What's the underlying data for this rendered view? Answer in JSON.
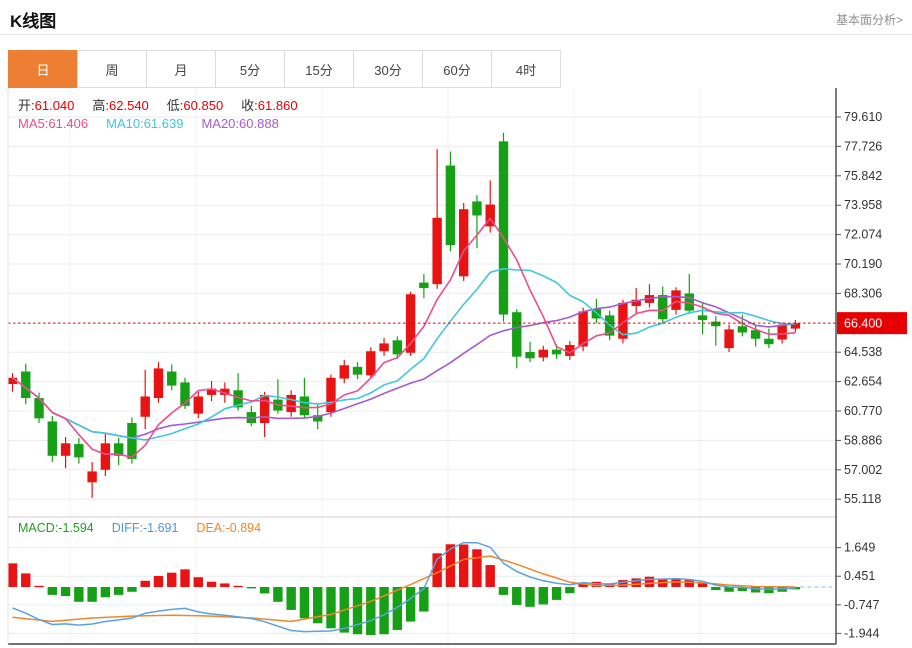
{
  "header": {
    "title": "K线图",
    "link": "基本面分析>"
  },
  "tabs": {
    "items": [
      "日",
      "周",
      "月",
      "5分",
      "15分",
      "30分",
      "60分",
      "4时"
    ],
    "active_index": 0,
    "active_color": "#ee7e33"
  },
  "ohlc_legend": [
    {
      "label": "开:",
      "value": "61.040"
    },
    {
      "label": "高:",
      "value": "62.540"
    },
    {
      "label": "低:",
      "value": "60.850"
    },
    {
      "label": "收:",
      "value": "61.860"
    }
  ],
  "ohlc_value_color": "#e60000",
  "ma_legend": [
    {
      "label": "MA5:",
      "value": "61.406",
      "color": "#ec4d8c"
    },
    {
      "label": "MA10:",
      "value": "61.639",
      "color": "#3fc8d8"
    },
    {
      "label": "MA20:",
      "value": "60.888",
      "color": "#a55bd0"
    }
  ],
  "macd_legend": [
    {
      "label": "MACD:",
      "value": "-1.594",
      "color": "#1f9f1f"
    },
    {
      "label": "DIFF:",
      "value": "-1.691",
      "color": "#4a99e0"
    },
    {
      "label": "DEA:",
      "value": "-0.894",
      "color": "#f0862b"
    }
  ],
  "price_axis": {
    "ticks": [
      "79.610",
      "77.726",
      "75.842",
      "73.958",
      "72.074",
      "70.190",
      "68.306",
      "64.538",
      "62.654",
      "60.770",
      "58.886",
      "57.002",
      "55.118"
    ],
    "last_price": "66.400",
    "last_price_color": "#e60000"
  },
  "macd_axis": {
    "ticks": [
      "1.649",
      "0.451",
      "-0.747",
      "-1.944"
    ]
  },
  "chart_data": {
    "type": "candlestick+macd",
    "up_color": "#e81414",
    "down_color": "#15a015",
    "ma_colors": {
      "ma5": "#ec4d8c",
      "ma10": "#3fc8d8",
      "ma20": "#a55bd0"
    },
    "diff_color": "#5ba3e0",
    "dea_color": "#f0862b",
    "price_line": 66.4,
    "price_range": [
      55.118,
      79.61
    ],
    "macd_tick_values": [
      1.649,
      0.451,
      -0.747,
      -1.944
    ],
    "candles_ohlc": [
      [
        62.5,
        63.2,
        62.0,
        62.9
      ],
      [
        63.3,
        63.8,
        61.2,
        61.6
      ],
      [
        61.6,
        61.95,
        60.0,
        60.3
      ],
      [
        60.1,
        60.45,
        57.5,
        57.9
      ],
      [
        57.9,
        59.1,
        57.1,
        58.7
      ],
      [
        58.65,
        59.05,
        57.4,
        57.8
      ],
      [
        56.2,
        57.5,
        55.2,
        56.9
      ],
      [
        57.0,
        59.3,
        56.6,
        58.7
      ],
      [
        58.7,
        59.05,
        57.3,
        57.9
      ],
      [
        60.0,
        60.35,
        57.4,
        57.7
      ],
      [
        60.4,
        63.4,
        59.6,
        61.7
      ],
      [
        61.6,
        63.9,
        61.3,
        63.5
      ],
      [
        63.3,
        63.75,
        62.1,
        62.4
      ],
      [
        62.6,
        62.9,
        60.9,
        61.1
      ],
      [
        60.6,
        62.0,
        60.3,
        61.7
      ],
      [
        61.8,
        62.7,
        61.4,
        62.2
      ],
      [
        61.8,
        62.6,
        61.3,
        62.2
      ],
      [
        62.1,
        63.2,
        60.8,
        61.0
      ],
      [
        60.7,
        61.1,
        59.8,
        60.0
      ],
      [
        60.0,
        62.0,
        59.1,
        61.8
      ],
      [
        61.5,
        62.8,
        60.6,
        60.8
      ],
      [
        60.7,
        62.1,
        60.4,
        61.8
      ],
      [
        61.7,
        62.9,
        60.3,
        60.5
      ],
      [
        60.5,
        61.2,
        59.6,
        60.1
      ],
      [
        60.7,
        63.1,
        60.4,
        62.9
      ],
      [
        62.85,
        64.05,
        62.55,
        63.7
      ],
      [
        63.6,
        63.9,
        62.8,
        63.1
      ],
      [
        63.05,
        64.85,
        62.9,
        64.6
      ],
      [
        64.6,
        65.45,
        64.3,
        65.1
      ],
      [
        65.3,
        65.55,
        64.1,
        64.4
      ],
      [
        64.5,
        68.4,
        64.3,
        68.25
      ],
      [
        69.0,
        69.55,
        68.0,
        68.65
      ],
      [
        68.9,
        77.55,
        68.6,
        73.15
      ],
      [
        76.5,
        77.4,
        71.0,
        71.4
      ],
      [
        69.4,
        74.1,
        69.1,
        73.7
      ],
      [
        74.2,
        74.6,
        71.2,
        73.3
      ],
      [
        72.6,
        75.55,
        72.2,
        74.0
      ],
      [
        78.05,
        78.6,
        66.5,
        66.95
      ],
      [
        67.1,
        67.3,
        63.5,
        64.25
      ],
      [
        64.55,
        65.2,
        63.9,
        64.15
      ],
      [
        64.2,
        64.95,
        63.95,
        64.7
      ],
      [
        64.7,
        65.05,
        64.1,
        64.4
      ],
      [
        64.3,
        65.25,
        64.05,
        65.0
      ],
      [
        64.9,
        67.4,
        64.6,
        67.15
      ],
      [
        67.3,
        67.95,
        66.4,
        66.7
      ],
      [
        66.9,
        67.2,
        65.3,
        65.6
      ],
      [
        65.4,
        67.9,
        65.1,
        67.7
      ],
      [
        67.5,
        68.65,
        67.0,
        67.9
      ],
      [
        67.7,
        68.9,
        67.4,
        68.2
      ],
      [
        68.2,
        68.75,
        66.4,
        66.65
      ],
      [
        67.25,
        68.7,
        66.95,
        68.5
      ],
      [
        68.3,
        69.55,
        67.0,
        67.2
      ],
      [
        66.9,
        67.7,
        65.7,
        66.6
      ],
      [
        66.5,
        66.85,
        64.95,
        66.2
      ],
      [
        64.8,
        66.3,
        64.55,
        66.0
      ],
      [
        66.2,
        66.95,
        65.55,
        65.8
      ],
      [
        65.95,
        66.25,
        64.9,
        65.4
      ],
      [
        65.4,
        66.05,
        64.8,
        65.05
      ],
      [
        65.35,
        66.45,
        65.1,
        66.3
      ],
      [
        66.05,
        66.6,
        65.8,
        66.4
      ]
    ],
    "macd_hist": [
      0.99,
      0.57,
      0.05,
      -0.33,
      -0.38,
      -0.62,
      -0.62,
      -0.43,
      -0.33,
      -0.2,
      0.26,
      0.46,
      0.6,
      0.74,
      0.41,
      0.22,
      0.15,
      0.05,
      -0.05,
      -0.27,
      -0.62,
      -0.96,
      -1.31,
      -1.52,
      -1.73,
      -1.91,
      -1.98,
      -2.01,
      -1.98,
      -1.8,
      -1.45,
      -1.03,
      1.41,
      1.79,
      1.78,
      1.58,
      0.92,
      -0.33,
      -0.75,
      -0.83,
      -0.73,
      -0.54,
      -0.26,
      0.15,
      0.22,
      0.15,
      0.29,
      0.36,
      0.43,
      0.36,
      0.33,
      0.29,
      0.15,
      -0.13,
      -0.2,
      -0.17,
      -0.23,
      -0.26,
      -0.2,
      -0.1
    ],
    "dea_control_points": [
      [
        0,
        -1.27
      ],
      [
        3,
        -1.44
      ],
      [
        6,
        -1.3
      ],
      [
        9,
        -1.22
      ],
      [
        12,
        -1.18
      ],
      [
        15,
        -1.22
      ],
      [
        18,
        -1.3
      ],
      [
        21,
        -1.44
      ],
      [
        24,
        -1.15
      ],
      [
        27,
        -0.6
      ],
      [
        30,
        0.1
      ],
      [
        32,
        0.6
      ],
      [
        34,
        1.15
      ],
      [
        36,
        1.3
      ],
      [
        38,
        0.95
      ],
      [
        40,
        0.55
      ],
      [
        42,
        0.2
      ],
      [
        44,
        0.05
      ],
      [
        46,
        0.08
      ],
      [
        48,
        0.15
      ],
      [
        50,
        0.22
      ],
      [
        52,
        0.18
      ],
      [
        54,
        0.08
      ],
      [
        56,
        0.02
      ],
      [
        59,
        0.0
      ]
    ]
  }
}
